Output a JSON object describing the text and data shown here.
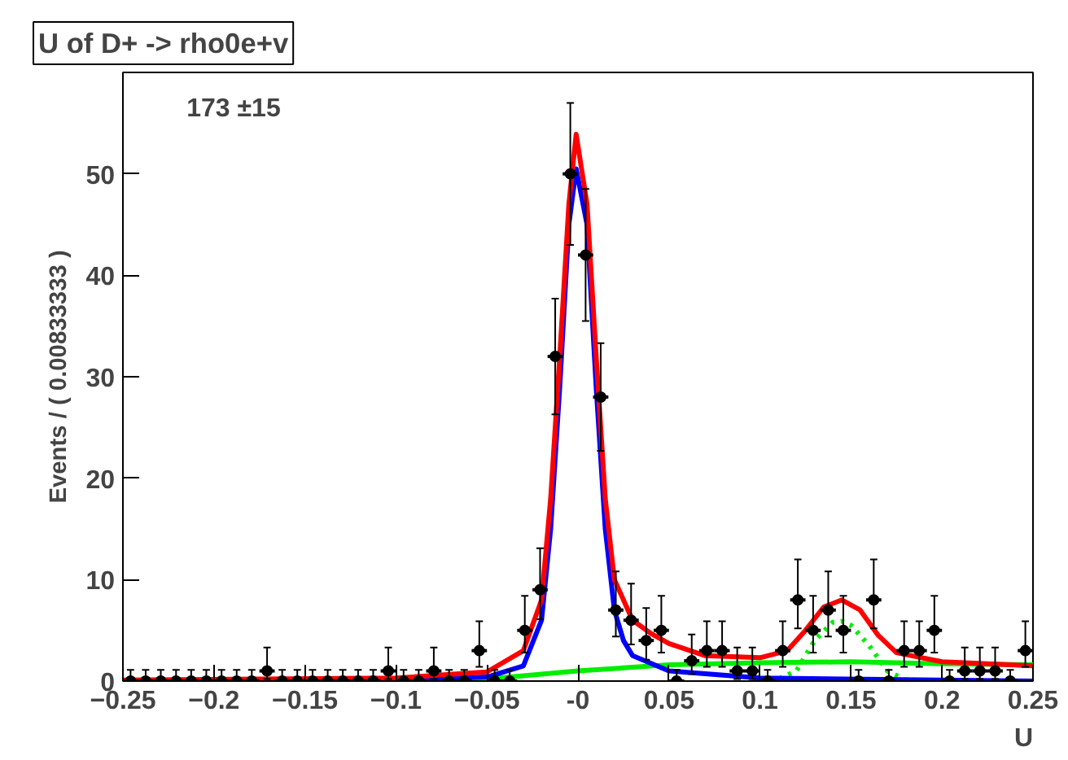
{
  "chart_data": {
    "type": "scatter",
    "title": "U of D+ -> rho0e+v",
    "xlabel": "U",
    "ylabel": "Events / ( 0.00833333 )",
    "annotations": [
      "173 ±15"
    ],
    "xlim": [
      -0.25,
      0.25
    ],
    "ylim": [
      0,
      60
    ],
    "xticks": [
      -0.25,
      -0.2,
      -0.15,
      -0.1,
      -0.05,
      {
        "value": 0,
        "label": "-0"
      },
      0.05,
      0.1,
      0.15,
      0.2,
      0.25
    ],
    "yticks": [
      0,
      10,
      20,
      30,
      40,
      50
    ],
    "grid": false,
    "series": [
      {
        "type": "line",
        "color": "#00ee00",
        "line_style": "solid",
        "x": [
          -0.25,
          -0.1,
          -0.05,
          0,
          0.05,
          0.1,
          0.15,
          0.2,
          0.25
        ],
        "values": [
          0,
          0.1,
          0.2,
          1,
          1.6,
          1.8,
          1.9,
          1.7,
          1.6
        ]
      },
      {
        "type": "line",
        "color": "#00ee00",
        "line_style": "dotted",
        "x": [
          0.1,
          0.11,
          0.12,
          0.13,
          0.14,
          0.145,
          0.15,
          0.16,
          0.17,
          0.18,
          0.19
        ],
        "values": [
          0,
          0.2,
          1,
          4,
          5.8,
          5.9,
          5.5,
          3.5,
          1,
          0.1,
          0
        ]
      },
      {
        "type": "line",
        "color": "#0000ff",
        "line_style": "solid",
        "x": [
          -0.25,
          -0.1,
          -0.05,
          -0.03,
          -0.02,
          -0.015,
          -0.01,
          -0.005,
          -0.001,
          0.005,
          0.01,
          0.015,
          0.02,
          0.025,
          0.03,
          0.05,
          0.1,
          0.25
        ],
        "values": [
          0,
          0.1,
          0.4,
          1.5,
          6,
          15,
          29,
          45,
          50.5,
          45,
          29,
          15,
          7,
          4,
          2.5,
          1,
          0.3,
          0
        ]
      },
      {
        "type": "line",
        "color": "#ff0000",
        "line_style": "solid",
        "x": [
          -0.25,
          -0.1,
          -0.05,
          -0.03,
          -0.02,
          -0.015,
          -0.01,
          -0.005,
          -0.001,
          0.005,
          0.01,
          0.015,
          0.02,
          0.03,
          0.04,
          0.05,
          0.07,
          0.1,
          0.115,
          0.125,
          0.135,
          0.145,
          0.155,
          0.165,
          0.175,
          0.2,
          0.25
        ],
        "values": [
          0.1,
          0.3,
          0.9,
          3,
          8,
          18,
          32,
          47,
          53.9,
          47,
          32,
          18,
          10,
          6,
          4.7,
          3.7,
          2.5,
          2.3,
          3,
          5,
          7.3,
          8,
          7,
          4.5,
          2.8,
          1.9,
          1.5
        ]
      },
      {
        "color": "#000000",
        "marker": "circle",
        "x": [
          -0.2458,
          -0.2375,
          -0.2292,
          -0.2208,
          -0.2125,
          -0.2042,
          -0.1958,
          -0.1875,
          -0.1792,
          -0.1708,
          -0.1625,
          -0.1542,
          -0.1458,
          -0.1375,
          -0.1292,
          -0.1208,
          -0.1125,
          -0.1042,
          -0.0958,
          -0.0875,
          -0.0792,
          -0.0708,
          -0.0625,
          -0.0542,
          -0.0458,
          -0.0375,
          -0.0292,
          -0.0208,
          -0.0125,
          -0.0042,
          0.0042,
          0.0125,
          0.0208,
          0.0292,
          0.0375,
          0.0458,
          0.0542,
          0.0625,
          0.0708,
          0.0792,
          0.0875,
          0.0958,
          0.1042,
          0.1125,
          0.1208,
          0.1292,
          0.1375,
          0.1458,
          0.1542,
          0.1625,
          0.1708,
          0.1792,
          0.1875,
          0.1958,
          0.2042,
          0.2125,
          0.2208,
          0.2292,
          0.2375,
          0.2458
        ],
        "values": [
          0,
          0,
          0,
          0,
          0,
          0,
          0,
          0,
          0,
          1,
          0,
          0,
          0,
          0,
          0,
          0,
          0,
          1,
          0,
          0,
          1,
          0,
          0,
          3,
          0,
          0,
          5,
          9,
          32,
          50,
          42,
          28,
          7,
          6,
          4,
          5,
          0,
          2,
          3,
          3,
          1,
          1,
          0,
          3,
          8,
          5,
          7,
          5,
          0,
          8,
          0,
          3,
          3,
          5,
          0,
          1,
          1,
          1,
          0,
          3
        ],
        "errors": [
          [
            0,
            1.1
          ],
          [
            0,
            1.1
          ],
          [
            0,
            1.1
          ],
          [
            0,
            1.1
          ],
          [
            0,
            1.1
          ],
          [
            0,
            1.1
          ],
          [
            0,
            1.1
          ],
          [
            0,
            1.1
          ],
          [
            0,
            1.1
          ],
          [
            0.2,
            3.3
          ],
          [
            0,
            1.1
          ],
          [
            0,
            1.1
          ],
          [
            0,
            1.1
          ],
          [
            0,
            1.1
          ],
          [
            0,
            1.1
          ],
          [
            0,
            1.1
          ],
          [
            0,
            1.1
          ],
          [
            0.2,
            3.3
          ],
          [
            0,
            1.1
          ],
          [
            0,
            1.1
          ],
          [
            0.2,
            3.3
          ],
          [
            0,
            1.1
          ],
          [
            0,
            1.1
          ],
          [
            1.4,
            5.9
          ],
          [
            0,
            1.1
          ],
          [
            0,
            1.1
          ],
          [
            2.8,
            8.4
          ],
          [
            6.1,
            13.1
          ],
          [
            26.3,
            37.7
          ],
          [
            43,
            57
          ],
          [
            35.5,
            48.5
          ],
          [
            22.7,
            33.3
          ],
          [
            4.4,
            10.8
          ],
          [
            3.6,
            9.6
          ],
          [
            2.1,
            7.2
          ],
          [
            2.8,
            8.4
          ],
          [
            0,
            1.1
          ],
          [
            0.7,
            4.6
          ],
          [
            1.4,
            5.9
          ],
          [
            1.4,
            5.9
          ],
          [
            0.2,
            3.3
          ],
          [
            0.2,
            3.3
          ],
          [
            0,
            1.1
          ],
          [
            1.4,
            5.9
          ],
          [
            5.2,
            12
          ],
          [
            2.8,
            8.4
          ],
          [
            4.4,
            10.8
          ],
          [
            2.8,
            8.4
          ],
          [
            0,
            1.1
          ],
          [
            5.2,
            12
          ],
          [
            0,
            1.1
          ],
          [
            1.4,
            5.9
          ],
          [
            1.4,
            5.9
          ],
          [
            2.8,
            8.4
          ],
          [
            0,
            1.1
          ],
          [
            0.2,
            3.3
          ],
          [
            0.2,
            3.3
          ],
          [
            0.2,
            3.3
          ],
          [
            0,
            1.1
          ],
          [
            1.4,
            5.9
          ]
        ],
        "xerrors": [
          0.0042,
          0.0042,
          0.0042,
          0.0042,
          0.0042,
          0.0042,
          0.0042,
          0.0042,
          0.0042,
          0.0042,
          0.0042,
          0.0042,
          0.0042,
          0.0042,
          0.0042,
          0.0042,
          0.0042,
          0.0042,
          0.0042,
          0.0042,
          0.0042,
          0.0042,
          0.0042,
          0.0042,
          0.0042,
          0.0042,
          0.0042,
          0.0042,
          0.0042,
          0.0042,
          0.0042,
          0.0042,
          0.0042,
          0.0042,
          0.0042,
          0.0042,
          0.0042,
          0.0042,
          0.0042,
          0.0042,
          0.0042,
          0.0042,
          0.0042,
          0.0042,
          0.0042,
          0.0042,
          0.0042,
          0.0042,
          0.0042,
          0.0042,
          0.0042,
          0.0042,
          0.0042,
          0.0042,
          0.0042,
          0.0042,
          0.0042,
          0.0042,
          0.0042,
          0.0042
        ]
      }
    ]
  }
}
